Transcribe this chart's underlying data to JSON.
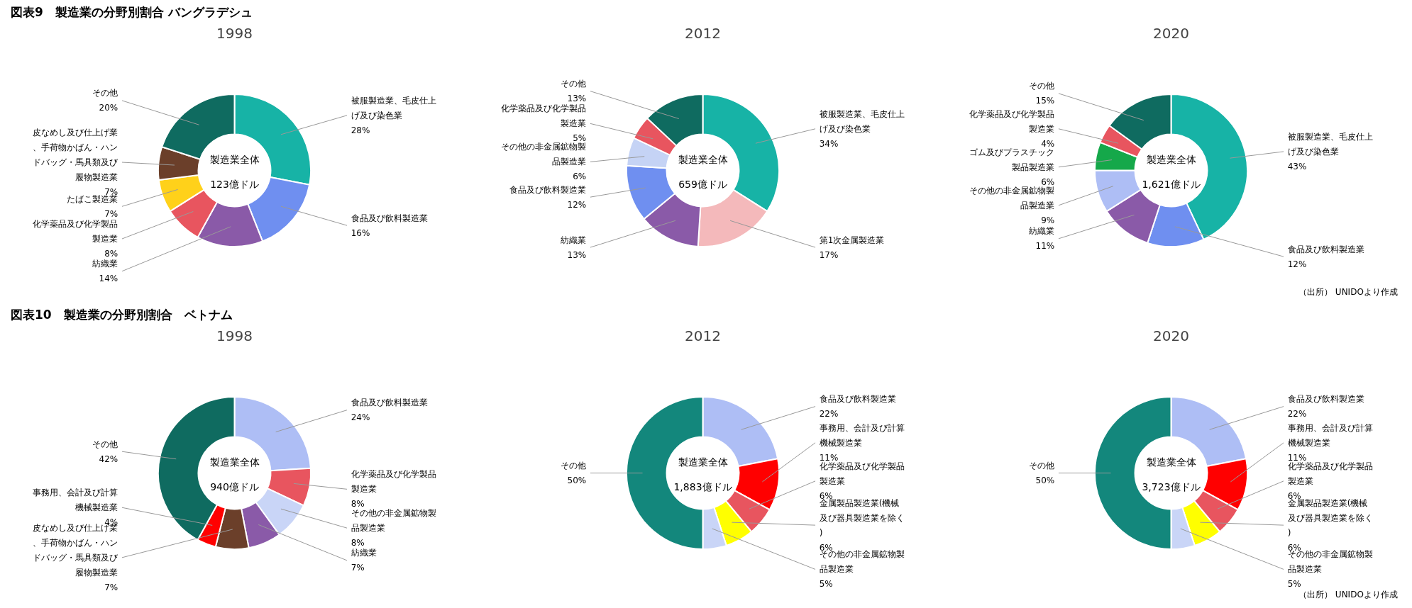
{
  "chart_data": [
    {
      "type": "donut",
      "subtitle": "図表9　製造業の分野別割合 バングラデシュ",
      "title": "1998",
      "categories": [
        "被服製造業、毛皮仕上げ及び染色業",
        "食品及び飲料製造業",
        "紡織業",
        "化学薬品及び化学製品製造業",
        "たばこ製造業",
        "皮なめし及び仕上げ業、手荷物かばん・ハンドバッグ・馬具類及び履物製造業",
        "その他"
      ],
      "values": [
        28,
        16,
        14,
        8,
        7,
        7,
        20
      ],
      "value_labels": [
        "28%",
        "16%",
        "14%",
        "8%",
        "7%",
        "7%",
        "20%"
      ],
      "colors": [
        "#17b3a6",
        "#6f8ff0",
        "#8a5aa8",
        "#e8555f",
        "#ffd11a",
        "#6b3f2a",
        "#0f6b60"
      ],
      "annotations": [
        "製造業全体",
        "123億ドル"
      ]
    },
    {
      "type": "donut",
      "title": "2012",
      "categories": [
        "被服製造業、毛皮仕上げ及び染色業",
        "第1次金属製造業",
        "紡織業",
        "食品及び飲料製造業",
        "その他の非金属鉱物製品製造業",
        "化学薬品及び化学製品製造業",
        "その他"
      ],
      "values": [
        34,
        17,
        13,
        12,
        6,
        5,
        13
      ],
      "value_labels": [
        "34%",
        "17%",
        "13%",
        "12%",
        "6%",
        "5%",
        "13%"
      ],
      "colors": [
        "#17b3a6",
        "#f4b9bb",
        "#8a5aa8",
        "#6f8ff0",
        "#c5d3f5",
        "#e8555f",
        "#0f6b60"
      ],
      "annotations": [
        "製造業全体",
        "659億ドル"
      ]
    },
    {
      "type": "donut",
      "title": "2020",
      "categories": [
        "被服製造業、毛皮仕上げ及び染色業",
        "食品及び飲料製造業",
        "紡織業",
        "その他の非金属鉱物製品製造業",
        "ゴム及びプラスチック製品製造業",
        "化学薬品及び化学製品製造業",
        "その他"
      ],
      "values": [
        43,
        12,
        11,
        9,
        6,
        4,
        15
      ],
      "value_labels": [
        "43%",
        "12%",
        "11%",
        "9%",
        "6%",
        "4%",
        "15%"
      ],
      "colors": [
        "#17b3a6",
        "#6f8ff0",
        "#8a5aa8",
        "#aebef5",
        "#15a84a",
        "#e8555f",
        "#0f6b60"
      ],
      "annotations": [
        "製造業全体",
        "1,621億ドル",
        "（出所） UNIDOより作成"
      ]
    },
    {
      "type": "donut",
      "subtitle": "図表10　製造業の分野別割合　ベトナム",
      "title": "1998",
      "categories": [
        "食品及び飲料製造業",
        "化学薬品及び化学製品製造業",
        "その他の非金属鉱物製品製造業",
        "紡織業",
        "皮なめし及び仕上げ業、手荷物かばん・ハンドバッグ・馬具類及び履物製造業",
        "事務用、会計及び計算機械製造業",
        "その他"
      ],
      "values": [
        24,
        8,
        8,
        7,
        7,
        4,
        42
      ],
      "value_labels": [
        "24%",
        "8%",
        "8%",
        "7%",
        "7%",
        "4%",
        "42%"
      ],
      "colors": [
        "#aebef5",
        "#e8555f",
        "#c9d5f7",
        "#8a5aa8",
        "#6b3f2a",
        "#ff0000",
        "#0f6b60"
      ],
      "annotations": [
        "製造業全体",
        "940億ドル"
      ]
    },
    {
      "type": "donut",
      "title": "2012",
      "categories": [
        "食品及び飲料製造業",
        "事務用、会計及び計算機械製造業",
        "化学薬品及び化学製品製造業",
        "金属製品製造業(機械及び器具製造業を除く)",
        "その他の非金属鉱物製品製造業",
        "その他"
      ],
      "values": [
        22,
        11,
        6,
        6,
        5,
        50
      ],
      "value_labels": [
        "22%",
        "11%",
        "6%",
        "6%",
        "5%",
        "50%"
      ],
      "colors": [
        "#aebef5",
        "#ff0000",
        "#e8555f",
        "#ffff00",
        "#c9d5f7",
        "#13877c"
      ],
      "annotations": [
        "製造業全体",
        "1,883億ドル"
      ]
    },
    {
      "type": "donut",
      "title": "2020",
      "categories": [
        "食品及び飲料製造業",
        "事務用、会計及び計算機械製造業",
        "化学薬品及び化学製品製造業",
        "金属製品製造業(機械及び器具製造業を除く)",
        "その他の非金属鉱物製品製造業",
        "その他"
      ],
      "values": [
        22,
        11,
        6,
        6,
        5,
        50
      ],
      "value_labels": [
        "22%",
        "11%",
        "6%",
        "6%",
        "5%",
        "50%"
      ],
      "colors": [
        "#aebef5",
        "#ff0000",
        "#e8555f",
        "#ffff00",
        "#c9d5f7",
        "#13877c"
      ],
      "annotations": [
        "製造業全体",
        "3,723億ドル",
        "（出所） UNIDOより作成"
      ]
    }
  ]
}
